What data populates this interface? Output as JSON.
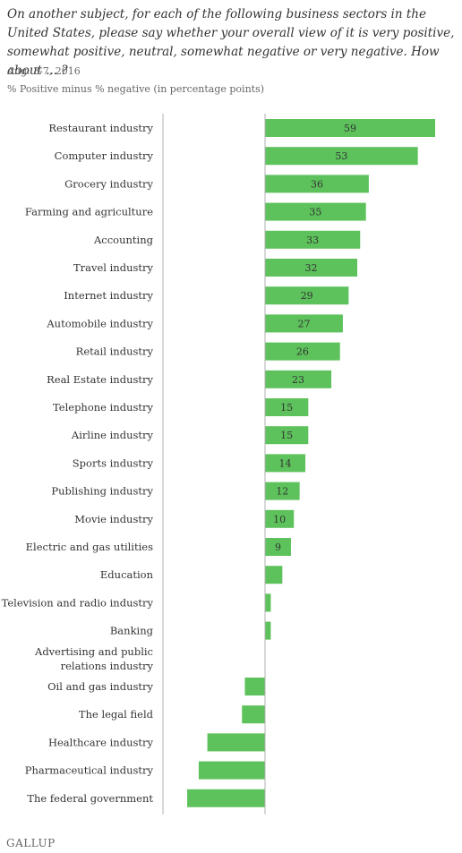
{
  "header": {
    "title": "On another subject, for each of the following business sectors in the United States, please say whether your overall view of it is very positive, somewhat positive, neutral, somewhat negative or very negative. How about ... ?",
    "date": "Aug. 3-7, 2016",
    "subtitle": "% Positive minus % negative (in percentage points)"
  },
  "footer": {
    "brand": "GALLUP"
  },
  "colors": {
    "bar": "#5dc25b",
    "axis": "#b0b0b0"
  },
  "chart_data": {
    "type": "bar",
    "orientation": "horizontal",
    "categories": [
      "Restaurant industry",
      "Computer industry",
      "Grocery industry",
      "Farming and agriculture",
      "Accounting",
      "Travel industry",
      "Internet industry",
      "Automobile industry",
      "Retail industry",
      "Real Estate industry",
      "Telephone industry",
      "Airline industry",
      "Sports industry",
      "Publishing industry",
      "Movie industry",
      "Electric and gas utilities",
      "Education",
      "Television and radio industry",
      "Banking",
      "Advertising and public relations industry",
      "Oil and gas industry",
      "The legal field",
      "Healthcare industry",
      "Pharmaceutical industry",
      "The federal government"
    ],
    "values": [
      59,
      53,
      36,
      35,
      33,
      32,
      29,
      27,
      26,
      23,
      15,
      15,
      14,
      12,
      10,
      9,
      6,
      2,
      2,
      0,
      -7,
      -8,
      -20,
      -23,
      -27
    ],
    "data_labels": [
      "59",
      "53",
      "36",
      "35",
      "33",
      "32",
      "29",
      "27",
      "26",
      "23",
      "15",
      "15",
      "14",
      "12",
      "10",
      "9",
      "",
      "",
      "",
      "",
      "",
      "",
      "",
      "",
      ""
    ],
    "xlim": [
      -35,
      60
    ],
    "title": "",
    "xlabel": "",
    "ylabel": "",
    "grid": false,
    "legend": "none"
  }
}
